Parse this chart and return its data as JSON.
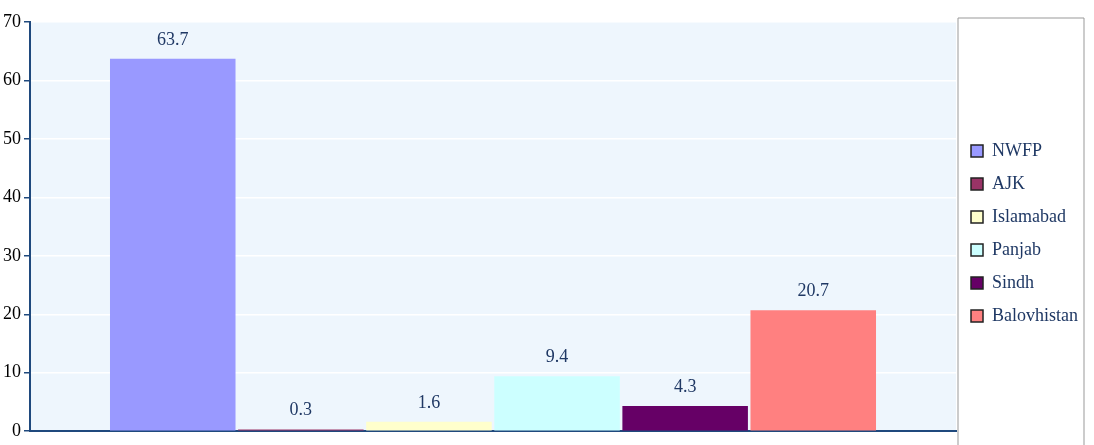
{
  "chart_data": {
    "type": "bar",
    "categories": [
      null
    ],
    "series": [
      {
        "name": "NWFP",
        "color": "#9999ff",
        "values": [
          63.7
        ]
      },
      {
        "name": "AJK",
        "color": "#993366",
        "values": [
          0.3
        ]
      },
      {
        "name": "Islamabad",
        "color": "#ffffcc",
        "values": [
          1.6
        ]
      },
      {
        "name": "Panjab",
        "color": "#ccffff",
        "values": [
          9.4
        ]
      },
      {
        "name": "Sindh",
        "color": "#660066",
        "values": [
          4.3
        ]
      },
      {
        "name": "Balovhistan",
        "color": "#ff8080",
        "values": [
          20.7
        ]
      }
    ],
    "ylim": [
      0,
      70
    ],
    "yticks": [
      0,
      10,
      20,
      30,
      40,
      50,
      60,
      70
    ],
    "grid": "y",
    "legend": "right",
    "data_labels": true
  }
}
